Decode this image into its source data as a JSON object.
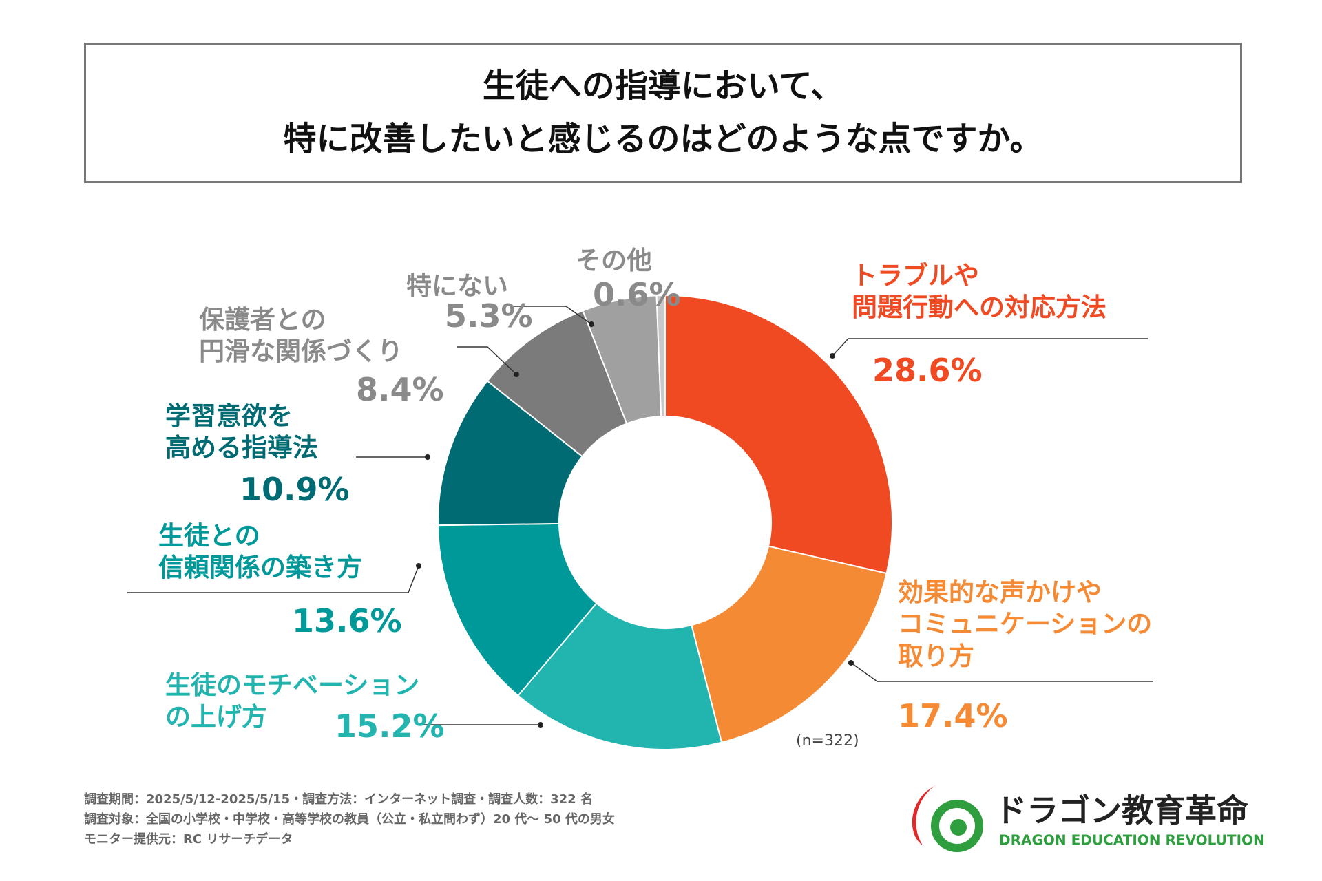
{
  "chart_data": {
    "type": "pie",
    "donut": true,
    "title": "生徒への指導において、\n特に改善したいと感じるのはどのような点ですか。",
    "categories": [
      "トラブルや\n問題行動への対応方法",
      "効果的な声かけや\nコミュニケーションの\n取り方",
      "生徒のモチベーション\nの上げ方",
      "生徒との\n信頼関係の築き方",
      "学習意欲を\n高める指導法",
      "保護者との\n円滑な関係づくり",
      "特にない",
      "その他"
    ],
    "values": [
      28.6,
      17.4,
      15.2,
      13.6,
      10.9,
      8.4,
      5.3,
      0.6
    ],
    "value_labels": [
      "28.6%",
      "17.4%",
      "15.2%",
      "13.6%",
      "10.9%",
      "8.4%",
      "5.3%",
      "0.6%"
    ],
    "colors": [
      "#f04a23",
      "#f58a35",
      "#22b5b0",
      "#00999a",
      "#006b73",
      "#7b7b7b",
      "#a0a0a0",
      "#c8c8c8"
    ],
    "label_colors": [
      "#f04a23",
      "#f58a35",
      "#22b5b0",
      "#00999a",
      "#006b73",
      "#8a8a8a",
      "#8a8a8a",
      "#8a8a8a"
    ],
    "sample_note": "(n=322)"
  },
  "footnotes": [
    "調査期間：2025/5/12-2025/5/15・調査方法：インターネット調査・調査人数：322 名",
    "調査対象：全国の小学校・中学校・高等学校の教員（公立・私立問わず）20 代〜 50 代の男女",
    "モニター提供元：RC リサーチデータ"
  ],
  "logo": {
    "name": "ドラゴン教育革命",
    "subtitle": "DRAGON EDUCATION REVOLUTION"
  }
}
